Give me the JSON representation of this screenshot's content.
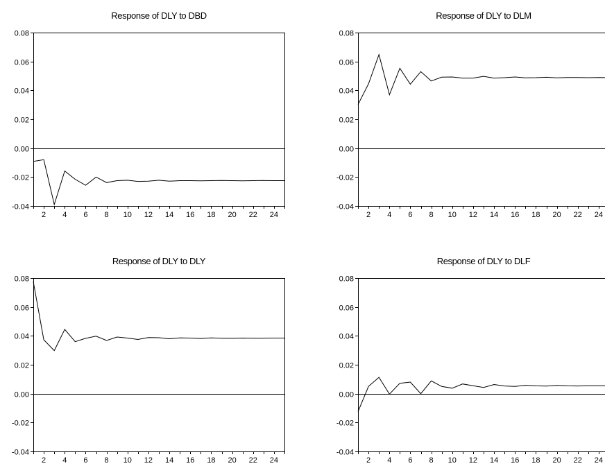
{
  "chart_data": [
    {
      "type": "line",
      "title": "Response of DLY to DBD",
      "x": [
        1,
        2,
        3,
        4,
        5,
        6,
        7,
        8,
        9,
        10,
        11,
        12,
        13,
        14,
        15,
        16,
        17,
        18,
        19,
        20,
        21,
        22,
        23,
        24,
        25
      ],
      "series": [
        {
          "values": [
            -0.0092,
            -0.008,
            -0.039,
            -0.0158,
            -0.0215,
            -0.0257,
            -0.02,
            -0.0238,
            -0.0225,
            -0.0222,
            -0.023,
            -0.0228,
            -0.0222,
            -0.0228,
            -0.0225,
            -0.0225,
            -0.0226,
            -0.0225,
            -0.0224,
            -0.0225,
            -0.0226,
            -0.0225,
            -0.0224,
            -0.0225,
            -0.0225
          ]
        }
      ],
      "xlim": [
        1,
        25
      ],
      "ylim": [
        -0.04,
        0.08
      ],
      "x_ticks": [
        "2",
        "4",
        "6",
        "8",
        "10",
        "12",
        "14",
        "16",
        "18",
        "20",
        "22",
        "24"
      ],
      "y_ticks": [
        "-0.04",
        "-0.02",
        "0.00",
        "0.02",
        "0.04",
        "0.06",
        "0.08"
      ],
      "zero_line": true,
      "grid": false
    },
    {
      "type": "line",
      "title": "Response of DLY to DLM",
      "x": [
        1,
        2,
        3,
        4,
        5,
        6,
        7,
        8,
        9,
        10,
        11,
        12,
        13,
        14,
        15,
        16,
        17,
        18,
        19,
        20,
        21,
        22,
        23,
        24,
        25
      ],
      "series": [
        {
          "values": [
            0.0302,
            0.0445,
            0.0648,
            0.037,
            0.0553,
            0.0443,
            0.053,
            0.0465,
            0.0492,
            0.0493,
            0.0485,
            0.0485,
            0.0497,
            0.0485,
            0.0488,
            0.0493,
            0.0487,
            0.0488,
            0.0491,
            0.0487,
            0.0489,
            0.0489,
            0.0488,
            0.0489,
            0.0488
          ]
        }
      ],
      "xlim": [
        1,
        25
      ],
      "ylim": [
        -0.04,
        0.08
      ],
      "x_ticks": [
        "2",
        "4",
        "6",
        "8",
        "10",
        "12",
        "14",
        "16",
        "18",
        "20",
        "22",
        "24"
      ],
      "y_ticks": [
        "-0.04",
        "-0.02",
        "0.00",
        "0.02",
        "0.04",
        "0.06",
        "0.08"
      ],
      "zero_line": true,
      "grid": false
    },
    {
      "type": "line",
      "title": "Response of DLY to DLY",
      "x": [
        1,
        2,
        3,
        4,
        5,
        6,
        7,
        8,
        9,
        10,
        11,
        12,
        13,
        14,
        15,
        16,
        17,
        18,
        19,
        20,
        21,
        22,
        23,
        24,
        25
      ],
      "series": [
        {
          "values": [
            0.0775,
            0.0373,
            0.0298,
            0.0445,
            0.036,
            0.0383,
            0.0398,
            0.0368,
            0.0392,
            0.0385,
            0.0375,
            0.0388,
            0.0387,
            0.038,
            0.0386,
            0.0385,
            0.0382,
            0.0386,
            0.0384,
            0.0383,
            0.0385,
            0.0384,
            0.0384,
            0.0385,
            0.0385
          ]
        }
      ],
      "xlim": [
        1,
        25
      ],
      "ylim": [
        -0.04,
        0.08
      ],
      "x_ticks": [
        "2",
        "4",
        "6",
        "8",
        "10",
        "12",
        "14",
        "16",
        "18",
        "20",
        "22",
        "24"
      ],
      "y_ticks": [
        "-0.04",
        "-0.02",
        "0.00",
        "0.02",
        "0.04",
        "0.06",
        "0.08"
      ],
      "zero_line": true,
      "grid": false
    },
    {
      "type": "line",
      "title": "Response of DLY to DLF",
      "x": [
        1,
        2,
        3,
        4,
        5,
        6,
        7,
        8,
        9,
        10,
        11,
        12,
        13,
        14,
        15,
        16,
        17,
        18,
        19,
        20,
        21,
        22,
        23,
        24,
        25
      ],
      "series": [
        {
          "values": [
            -0.0125,
            0.005,
            0.0113,
            -0.0003,
            0.0072,
            0.008,
            0.0,
            0.0088,
            0.005,
            0.0038,
            0.0067,
            0.0055,
            0.0043,
            0.0063,
            0.0053,
            0.005,
            0.0058,
            0.0054,
            0.0052,
            0.0057,
            0.0054,
            0.0053,
            0.0055,
            0.0055,
            0.0054
          ]
        }
      ],
      "xlim": [
        1,
        25
      ],
      "ylim": [
        -0.04,
        0.08
      ],
      "x_ticks": [
        "2",
        "4",
        "6",
        "8",
        "10",
        "12",
        "14",
        "16",
        "18",
        "20",
        "22",
        "24"
      ],
      "y_ticks": [
        "-0.04",
        "-0.02",
        "0.00",
        "0.02",
        "0.04",
        "0.06",
        "0.08"
      ],
      "zero_line": true,
      "grid": false
    }
  ]
}
